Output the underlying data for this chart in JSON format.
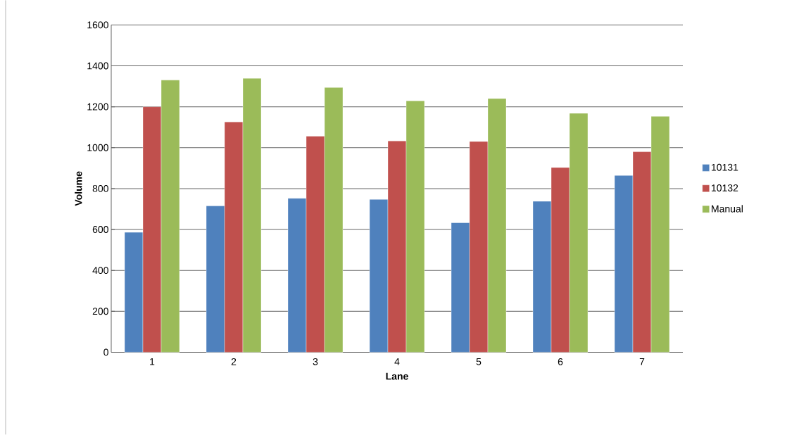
{
  "chart_data": {
    "type": "bar",
    "xlabel": "Lane",
    "ylabel": "Volume",
    "categories": [
      "1",
      "2",
      "3",
      "4",
      "5",
      "6",
      "7"
    ],
    "series": [
      {
        "name": "10131",
        "color": "#4f81bd",
        "values": [
          586,
          715,
          752,
          747,
          633,
          738,
          864
        ]
      },
      {
        "name": "10132",
        "color": "#c0504d",
        "values": [
          1200,
          1126,
          1056,
          1033,
          1030,
          903,
          980
        ]
      },
      {
        "name": "Manual",
        "color": "#9bbb59",
        "values": [
          1330,
          1339,
          1294,
          1229,
          1240,
          1168,
          1153
        ]
      }
    ],
    "ylim": [
      0,
      1600
    ],
    "yticks": [
      0,
      200,
      400,
      600,
      800,
      1000,
      1200,
      1400,
      1600
    ],
    "grid": "y",
    "legend": "right"
  }
}
